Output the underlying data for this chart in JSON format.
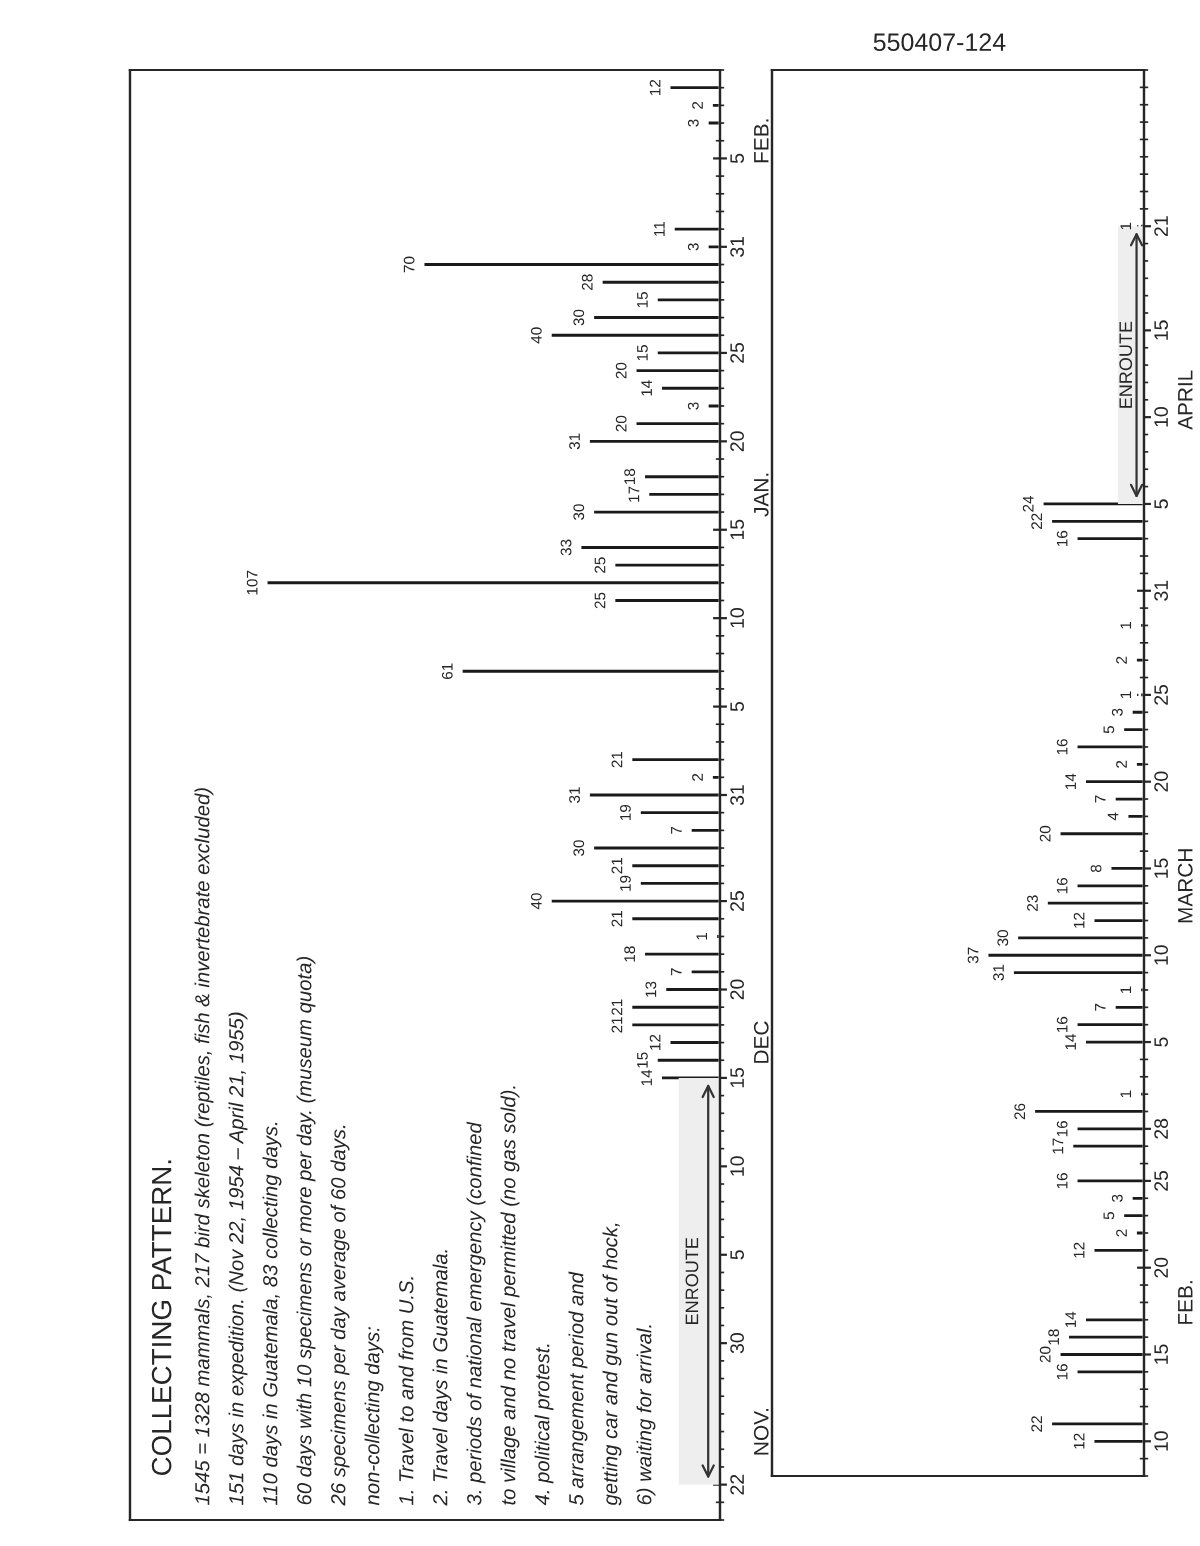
{
  "chart_data": [
    {
      "type": "bar",
      "orientation": "horizontal",
      "title": "COLLECTING PATTERN.",
      "color": "#1a1a1a",
      "data_labels": true,
      "tick_labels": "y",
      "x": [
        "1954-12-15",
        "1954-12-16",
        "1954-12-17",
        "1954-12-18",
        "1954-12-19",
        "1954-12-20",
        "1954-12-21",
        "1954-12-22",
        "1954-12-23",
        "1954-12-24",
        "1954-12-25",
        "1954-12-26",
        "1954-12-27",
        "1954-12-28",
        "1954-12-29",
        "1954-12-30",
        "1954-12-31",
        "1955-01-01",
        "1955-01-02",
        "1955-01-07",
        "1955-01-11",
        "1955-01-12",
        "1955-01-13",
        "1955-01-14",
        "1955-01-16",
        "1955-01-17",
        "1955-01-18",
        "1955-01-20",
        "1955-01-21",
        "1955-01-22",
        "1955-01-23",
        "1955-01-24",
        "1955-01-25",
        "1955-01-26",
        "1955-01-27",
        "1955-01-28",
        "1955-01-29",
        "1955-01-30",
        "1955-01-31",
        "1955-02-01",
        "1955-02-07",
        "1955-02-08",
        "1955-02-09"
      ],
      "values": [
        14,
        15,
        12,
        21,
        21,
        13,
        7,
        18,
        1,
        21,
        40,
        19,
        21,
        30,
        7,
        19,
        31,
        2,
        21,
        61,
        25,
        107,
        25,
        33,
        30,
        17,
        18,
        31,
        20,
        3,
        14,
        20,
        15,
        40,
        30,
        15,
        28,
        70,
        3,
        11,
        3,
        2,
        12
      ],
      "ylim": [
        "1954-11-20",
        "1955-02-10"
      ],
      "yticks": [
        {
          "value": "1954-11-22",
          "label": "22"
        },
        {
          "value": "1954-11-30",
          "label": "30"
        },
        {
          "value": "1954-12-05",
          "label": "5"
        },
        {
          "value": "1954-12-10",
          "label": "10"
        },
        {
          "value": "1954-12-15",
          "label": "15"
        },
        {
          "value": "1954-12-20",
          "label": "20"
        },
        {
          "value": "1954-12-25",
          "label": "25"
        },
        {
          "value": "1954-12-31",
          "label": "31"
        },
        {
          "value": "1955-01-05",
          "label": "5"
        },
        {
          "value": "1955-01-10",
          "label": "10"
        },
        {
          "value": "1955-01-15",
          "label": "15"
        },
        {
          "value": "1955-01-20",
          "label": "20"
        },
        {
          "value": "1955-01-25",
          "label": "25"
        },
        {
          "value": "1955-01-31",
          "label": "31"
        },
        {
          "value": "1955-02-05",
          "label": "5"
        }
      ],
      "y2lim": [
        "1954-11-20",
        "1955-02-10"
      ],
      "y2ticks": [
        {
          "value": "1954-11-25",
          "label": "NOV."
        },
        {
          "value": "1954-12-17",
          "label": "DEC"
        },
        {
          "value": "1955-01-17",
          "label": "JAN."
        },
        {
          "value": "1955-02-06",
          "label": "FEB."
        }
      ],
      "bands": [
        {
          "axis": "y",
          "from": "1954-11-22",
          "to": "1954-12-15",
          "label": "ENROUTE"
        }
      ],
      "annotations": [
        "1545 = 1328 mammals, 217 bird skeleton (reptiles, fish & invertebrate excluded)",
        "151 days in expedition. (Nov 22, 1954 – April 21, 1955)",
        "110 days in Guatemala, 83 collecting days.",
        "60 days with 10 specimens or more per day. (museum quota)",
        "26 specimens per day average of 60 days.",
        "non-collecting days:",
        "1. Travel to and from U.S.",
        "2. Travel days in Guatemala.",
        "3. periods of national emergency (confined",
        "to village and no travel permitted (no gas sold).",
        "4. political protest.",
        "5 arrangement period and",
        "getting car and gun out of hock,",
        "6) waiting for arrival."
      ]
    },
    {
      "type": "bar",
      "orientation": "horizontal",
      "color": "#1a1a1a",
      "data_labels": true,
      "tick_labels": "y",
      "x": [
        "1955-02-10",
        "1955-02-11",
        "1955-02-14",
        "1955-02-15",
        "1955-02-16",
        "1955-02-17",
        "1955-02-21",
        "1955-02-22",
        "1955-02-23",
        "1955-02-24",
        "1955-02-25",
        "1955-02-27",
        "1955-02-28",
        "1955-03-01",
        "1955-03-02",
        "1955-03-05",
        "1955-03-06",
        "1955-03-07",
        "1955-03-08",
        "1955-03-09",
        "1955-03-10",
        "1955-03-11",
        "1955-03-12",
        "1955-03-13",
        "1955-03-14",
        "1955-03-15",
        "1955-03-17",
        "1955-03-18",
        "1955-03-19",
        "1955-03-20",
        "1955-03-21",
        "1955-03-22",
        "1955-03-23",
        "1955-03-24",
        "1955-03-25",
        "1955-03-27",
        "1955-03-29",
        "1955-04-03",
        "1955-04-04",
        "1955-04-05",
        "1955-04-21"
      ],
      "values": [
        12,
        22,
        16,
        20,
        18,
        14,
        12,
        2,
        5,
        3,
        16,
        17,
        16,
        26,
        1,
        14,
        16,
        7,
        1,
        31,
        37,
        30,
        12,
        23,
        16,
        8,
        20,
        4,
        7,
        14,
        2,
        16,
        5,
        3,
        1,
        2,
        1,
        16,
        22,
        24,
        1
      ],
      "ylim": [
        "1955-02-08",
        "1955-04-30"
      ],
      "yticks": [
        {
          "value": "1955-02-10",
          "label": "10"
        },
        {
          "value": "1955-02-15",
          "label": "15"
        },
        {
          "value": "1955-02-20",
          "label": "20"
        },
        {
          "value": "1955-02-25",
          "label": "25"
        },
        {
          "value": "1955-02-28",
          "label": "28"
        },
        {
          "value": "1955-03-05",
          "label": "5"
        },
        {
          "value": "1955-03-10",
          "label": "10"
        },
        {
          "value": "1955-03-15",
          "label": "15"
        },
        {
          "value": "1955-03-20",
          "label": "20"
        },
        {
          "value": "1955-03-25",
          "label": "25"
        },
        {
          "value": "1955-03-31",
          "label": "31"
        },
        {
          "value": "1955-04-05",
          "label": "5"
        },
        {
          "value": "1955-04-10",
          "label": "10"
        },
        {
          "value": "1955-04-15",
          "label": "15"
        },
        {
          "value": "1955-04-21",
          "label": "21"
        }
      ],
      "y2lim": [
        "1955-02-08",
        "1955-04-30"
      ],
      "y2ticks": [
        {
          "value": "1955-02-18",
          "label": "FEB."
        },
        {
          "value": "1955-03-14",
          "label": "MARCH"
        },
        {
          "value": "1955-04-11",
          "label": "APRIL"
        }
      ],
      "bands": [
        {
          "axis": "y",
          "from": "1955-04-05",
          "to": "1955-04-21",
          "label": "ENROUTE"
        }
      ],
      "annotations": [
        "550407-124"
      ]
    }
  ]
}
